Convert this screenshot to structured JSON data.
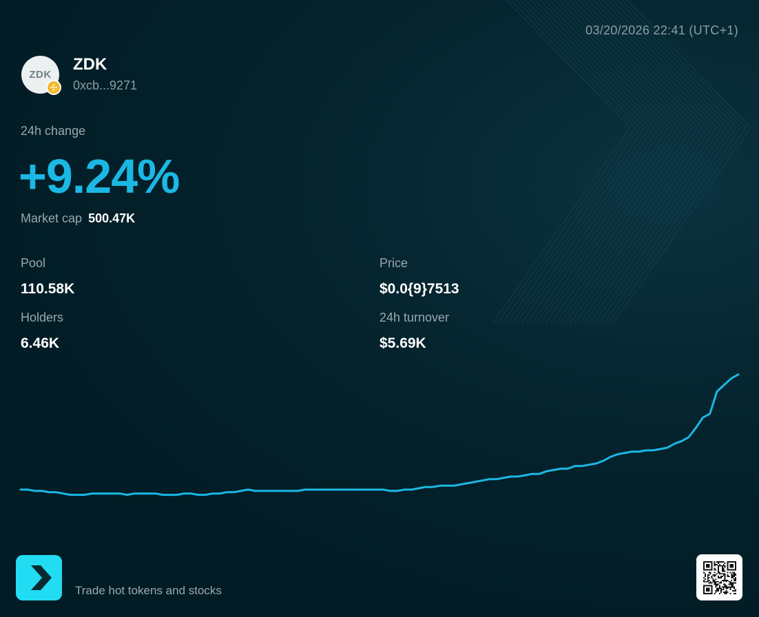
{
  "timestamp": "03/20/2026 22:41 (UTC+1)",
  "token": {
    "avatar_text": "ZDK",
    "symbol": "ZDK",
    "address": "0xcb...9271",
    "chain_badge_icon": "bnb-chain-icon",
    "chain_badge_color": "#f3ba2f"
  },
  "change": {
    "label": "24h change",
    "value": "+9.24%"
  },
  "market_cap": {
    "label": "Market cap",
    "value": "500.47K"
  },
  "stats": {
    "pool": {
      "label": "Pool",
      "value": "110.58K"
    },
    "price": {
      "label": "Price",
      "value": "$0.0{9}7513"
    },
    "holders": {
      "label": "Holders",
      "value": "6.46K"
    },
    "turnover": {
      "label": "24h turnover",
      "value": "$5.69K"
    }
  },
  "footer": {
    "tagline": "Trade hot tokens and stocks",
    "logo_icon": "chevron-right-logo-icon",
    "qr_icon": "qr-code-icon"
  },
  "colors": {
    "accent": "#1bb8e4",
    "background": "#021e27",
    "logo": "#21dcf3"
  },
  "chart_data": {
    "type": "line",
    "title": "",
    "xlabel": "",
    "ylabel": "",
    "grid": false,
    "axes_visible": false,
    "series": [
      {
        "values": [
          1.0,
          1.0,
          0.99,
          0.99,
          0.98,
          0.98,
          0.97,
          0.96,
          0.96,
          0.96,
          0.97,
          0.97,
          0.97,
          0.97,
          0.97,
          0.96,
          0.97,
          0.97,
          0.97,
          0.97,
          0.96,
          0.96,
          0.96,
          0.97,
          0.97,
          0.96,
          0.96,
          0.97,
          0.97,
          0.98,
          0.98,
          0.99,
          1.0,
          0.99,
          0.99,
          0.99,
          0.99,
          0.99,
          0.99,
          0.99,
          1.0,
          1.0,
          1.0,
          1.0,
          1.0,
          1.0,
          1.0,
          1.0,
          1.0,
          1.0,
          1.0,
          1.0,
          0.99,
          0.99,
          1.0,
          1.0,
          1.01,
          1.02,
          1.02,
          1.03,
          1.03,
          1.03,
          1.04,
          1.05,
          1.06,
          1.07,
          1.08,
          1.08,
          1.09,
          1.1,
          1.1,
          1.11,
          1.12,
          1.12,
          1.14,
          1.15,
          1.16,
          1.16,
          1.18,
          1.18,
          1.19,
          1.2,
          1.22,
          1.25,
          1.27,
          1.28,
          1.29,
          1.29,
          1.3,
          1.3,
          1.31,
          1.32,
          1.35,
          1.37,
          1.4,
          1.47,
          1.55,
          1.58,
          1.75,
          1.8,
          1.85,
          1.88
        ]
      }
    ]
  }
}
